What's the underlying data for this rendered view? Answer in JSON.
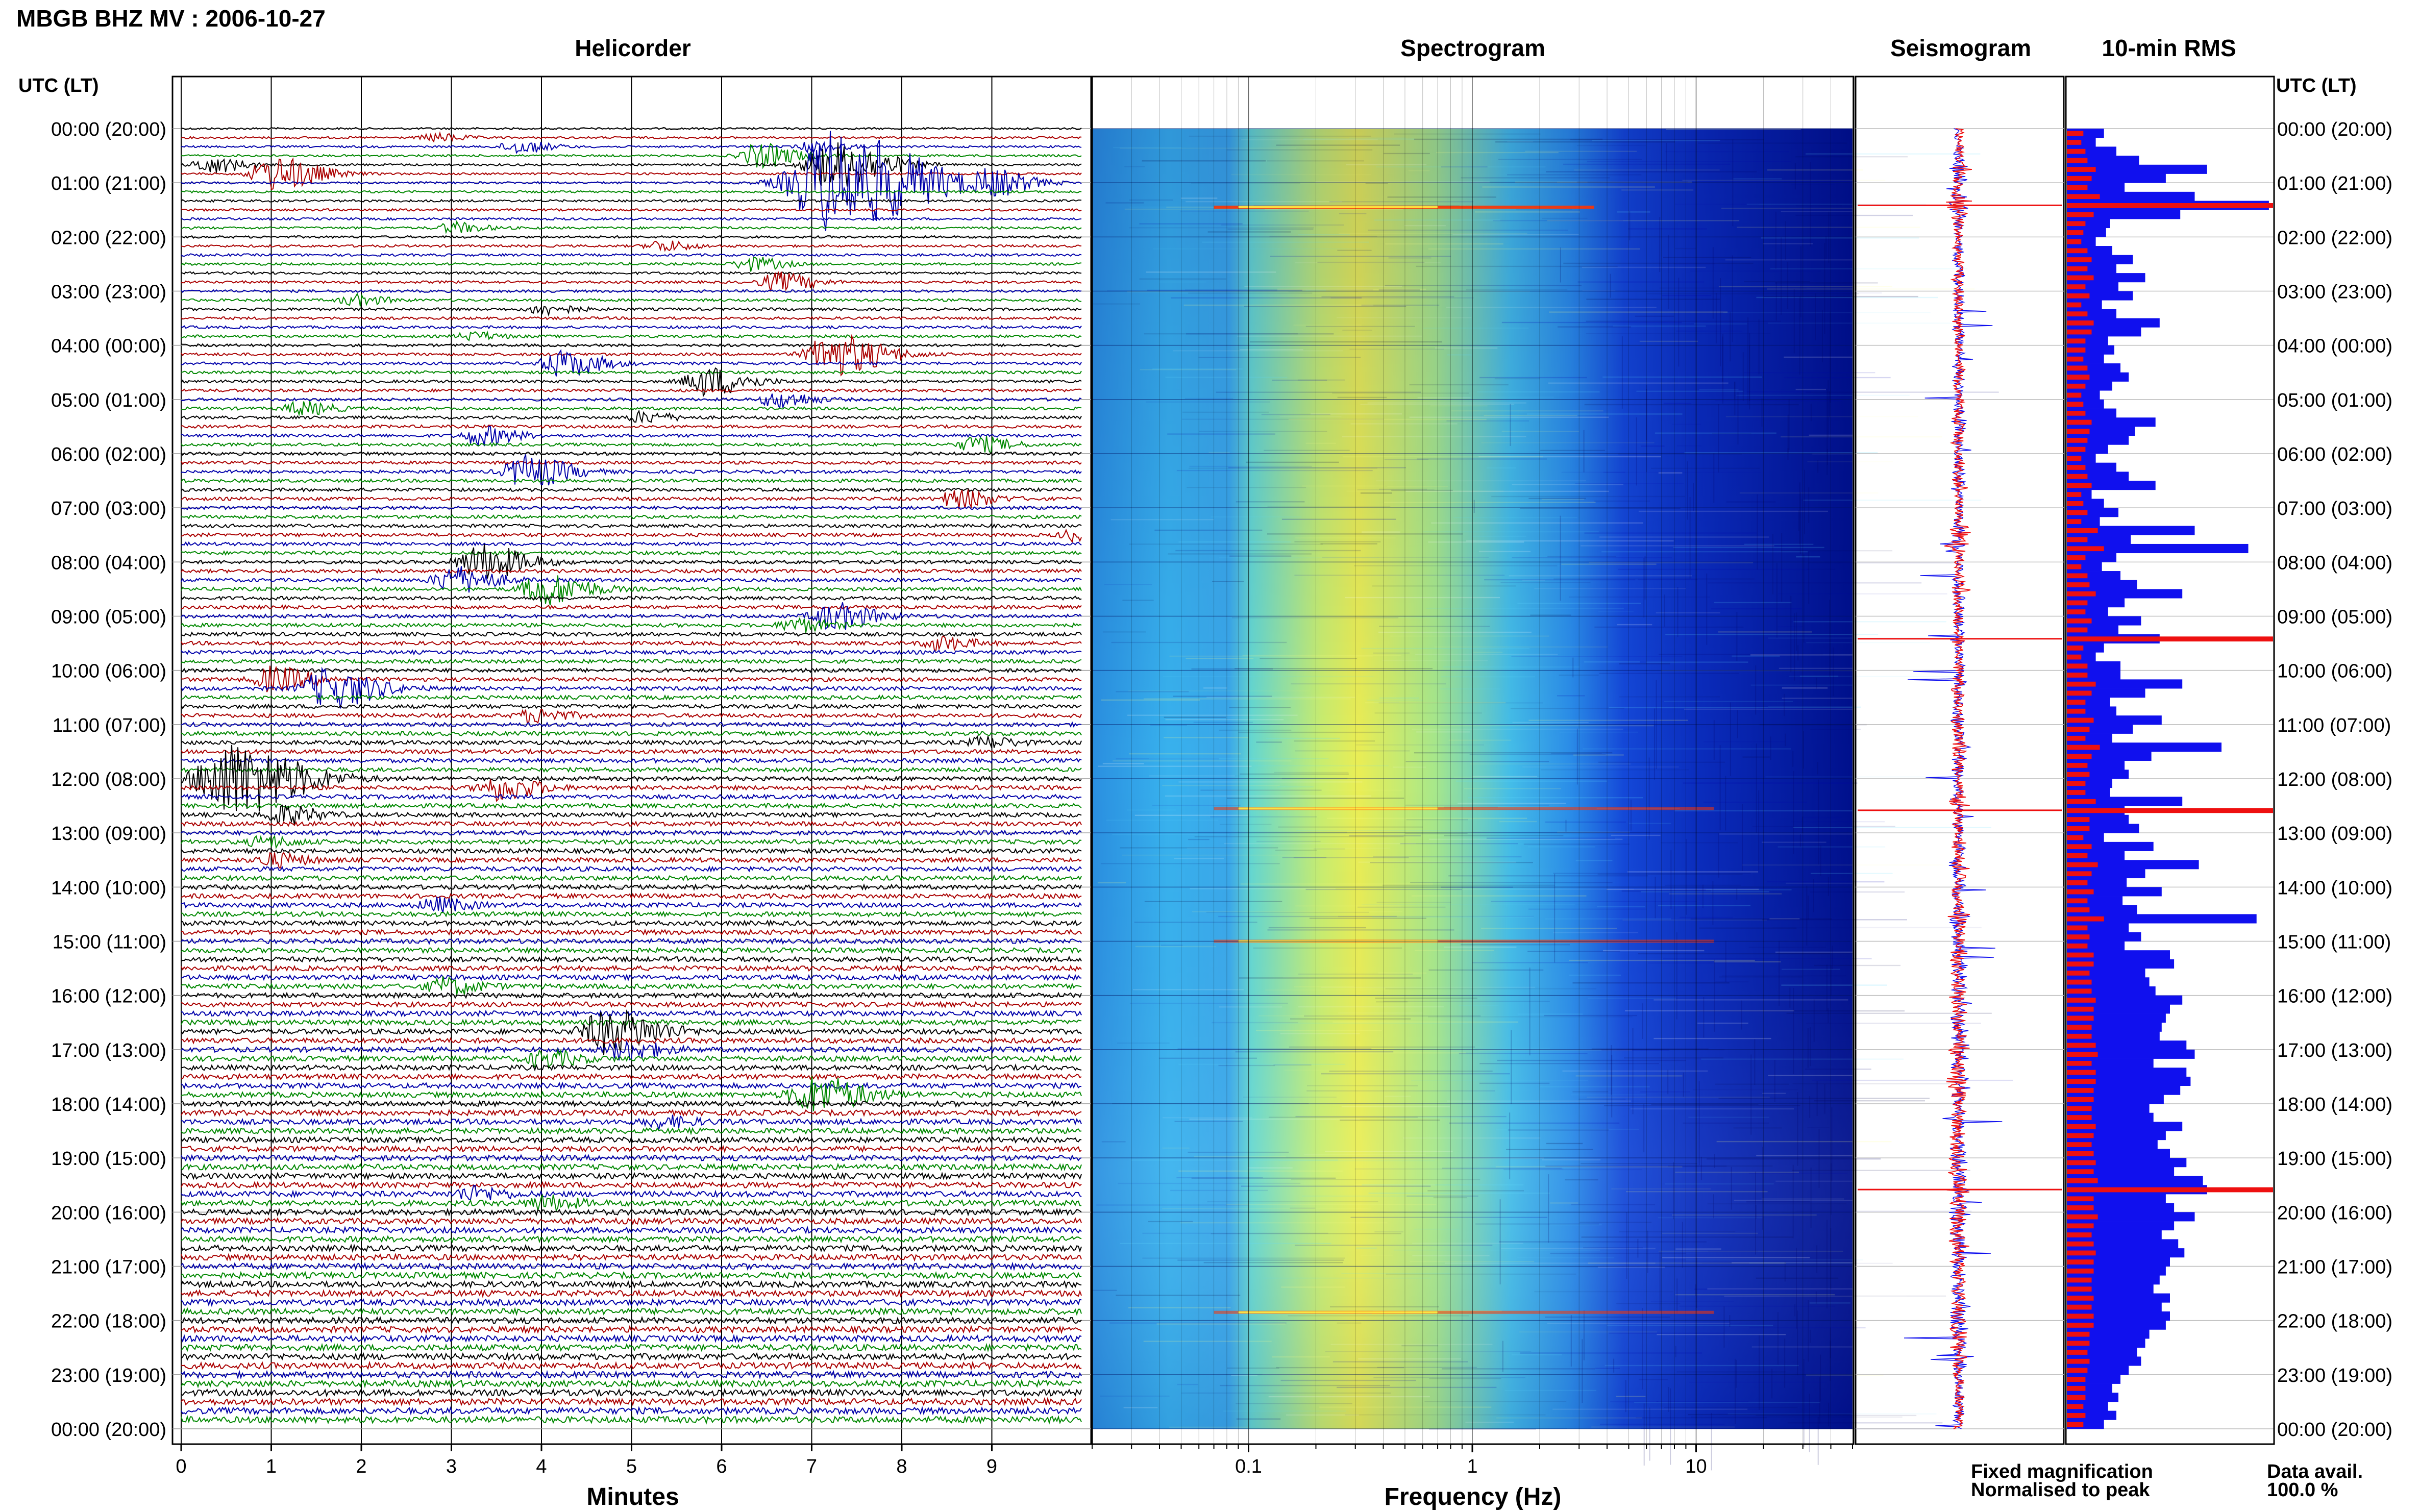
{
  "figure_title": "MBGB BHZ MV : 2006-10-27",
  "time_axis_label": "UTC (LT)",
  "time_labels": [
    "00:00 (20:00)",
    "01:00 (21:00)",
    "02:00 (22:00)",
    "03:00 (23:00)",
    "04:00 (00:00)",
    "05:00 (01:00)",
    "06:00 (02:00)",
    "07:00 (03:00)",
    "08:00 (04:00)",
    "09:00 (05:00)",
    "10:00 (06:00)",
    "11:00 (07:00)",
    "12:00 (08:00)",
    "13:00 (09:00)",
    "14:00 (10:00)",
    "15:00 (11:00)",
    "16:00 (12:00)",
    "17:00 (13:00)",
    "18:00 (14:00)",
    "19:00 (15:00)",
    "20:00 (16:00)",
    "21:00 (17:00)",
    "22:00 (18:00)",
    "23:00 (19:00)",
    "00:00 (20:00)"
  ],
  "legend": {
    "fixed": "Fixed magnification",
    "normalised": "Normalised to peak",
    "fixed_color": "#1010ee",
    "normalised_color": "#ee1010"
  },
  "data_avail_label": "Data avail.",
  "data_avail_value": "100.0 %",
  "colors": {
    "trace_cycle": [
      "#000000",
      "#aa0000",
      "#0000aa",
      "#008800"
    ],
    "spec_low": "#00008b",
    "spec_mid": "#33ccee",
    "spec_high": "#ffee44",
    "spike": "#ff3300"
  },
  "chart_data": [
    {
      "type": "line",
      "title": "Helicorder",
      "xlabel": "Minutes",
      "xlim": [
        0,
        10
      ],
      "x_ticks": [
        "0",
        "1",
        "2",
        "3",
        "4",
        "5",
        "6",
        "7",
        "8",
        "9"
      ],
      "hours": 24,
      "lines_per_hour": 6,
      "events": [
        {
          "line": 1,
          "minute": 2.8,
          "amp": 0.3
        },
        {
          "line": 2,
          "minute": 7.0,
          "amp": 0.4
        },
        {
          "line": 2,
          "minute": 3.7,
          "amp": 0.5
        },
        {
          "line": 3,
          "minute": 6.4,
          "amp": 0.9
        },
        {
          "line": 4,
          "minute": 0.3,
          "amp": 0.6
        },
        {
          "line": 4,
          "minute": 7.2,
          "amp": 1.8
        },
        {
          "line": 5,
          "minute": 1.0,
          "amp": 1.3
        },
        {
          "line": 6,
          "minute": 7.2,
          "amp": 4.0
        },
        {
          "line": 6,
          "minute": 9.0,
          "amp": 0.8
        },
        {
          "line": 11,
          "minute": 3.0,
          "amp": 0.4
        },
        {
          "line": 13,
          "minute": 5.3,
          "amp": 0.4
        },
        {
          "line": 15,
          "minute": 6.3,
          "amp": 0.5
        },
        {
          "line": 17,
          "minute": 6.6,
          "amp": 0.7
        },
        {
          "line": 19,
          "minute": 1.9,
          "amp": 0.4
        },
        {
          "line": 20,
          "minute": 4.0,
          "amp": 0.4
        },
        {
          "line": 23,
          "minute": 3.2,
          "amp": 0.3
        },
        {
          "line": 25,
          "minute": 7.2,
          "amp": 1.6
        },
        {
          "line": 26,
          "minute": 4.2,
          "amp": 1.0
        },
        {
          "line": 28,
          "minute": 5.8,
          "amp": 1.1
        },
        {
          "line": 30,
          "minute": 6.6,
          "amp": 0.6
        },
        {
          "line": 31,
          "minute": 1.3,
          "amp": 0.5
        },
        {
          "line": 32,
          "minute": 5.1,
          "amp": 0.4
        },
        {
          "line": 34,
          "minute": 3.3,
          "amp": 0.7
        },
        {
          "line": 35,
          "minute": 8.8,
          "amp": 0.6
        },
        {
          "line": 38,
          "minute": 3.8,
          "amp": 1.2
        },
        {
          "line": 41,
          "minute": 8.6,
          "amp": 0.7
        },
        {
          "line": 45,
          "minute": 9.9,
          "amp": 0.4
        },
        {
          "line": 48,
          "minute": 3.3,
          "amp": 1.3
        },
        {
          "line": 50,
          "minute": 3.0,
          "amp": 1.0
        },
        {
          "line": 51,
          "minute": 4.0,
          "amp": 1.2
        },
        {
          "line": 54,
          "minute": 7.2,
          "amp": 1.0
        },
        {
          "line": 55,
          "minute": 6.8,
          "amp": 0.5
        },
        {
          "line": 57,
          "minute": 8.4,
          "amp": 0.5
        },
        {
          "line": 61,
          "minute": 1.0,
          "amp": 0.9
        },
        {
          "line": 62,
          "minute": 1.6,
          "amp": 1.5
        },
        {
          "line": 65,
          "minute": 3.9,
          "amp": 0.5
        },
        {
          "line": 68,
          "minute": 8.9,
          "amp": 0.4
        },
        {
          "line": 72,
          "minute": 0.5,
          "amp": 2.8
        },
        {
          "line": 73,
          "minute": 3.5,
          "amp": 0.9
        },
        {
          "line": 76,
          "minute": 1.1,
          "amp": 0.7
        },
        {
          "line": 79,
          "minute": 0.9,
          "amp": 0.4
        },
        {
          "line": 81,
          "minute": 1.0,
          "amp": 0.5
        },
        {
          "line": 86,
          "minute": 2.8,
          "amp": 0.5
        },
        {
          "line": 95,
          "minute": 2.9,
          "amp": 0.6
        },
        {
          "line": 100,
          "minute": 4.7,
          "amp": 1.6
        },
        {
          "line": 102,
          "minute": 4.9,
          "amp": 0.7
        },
        {
          "line": 103,
          "minute": 4.0,
          "amp": 0.6
        },
        {
          "line": 107,
          "minute": 7.0,
          "amp": 1.4
        },
        {
          "line": 110,
          "minute": 5.3,
          "amp": 0.4
        },
        {
          "line": 118,
          "minute": 3.2,
          "amp": 0.5
        },
        {
          "line": 119,
          "minute": 4.0,
          "amp": 0.5
        }
      ]
    },
    {
      "type": "heatmap",
      "title": "Spectrogram",
      "xlabel": "Frequency (Hz)",
      "x_scale": "log",
      "xlim": [
        0.02,
        50
      ],
      "x_ticks": [
        0.1,
        1,
        10
      ],
      "x_tick_labels": [
        "0.1",
        "1",
        "10"
      ],
      "peak_frequency_hz": 0.28,
      "spike_hours": [
        1.45,
        15.0,
        21.85,
        12.55
      ]
    },
    {
      "type": "line",
      "title": "Seismogram",
      "series": [
        {
          "name": "Fixed magnification",
          "color": "#1010ee"
        },
        {
          "name": "Normalised to peak",
          "color": "#ee1010"
        }
      ]
    },
    {
      "type": "bar",
      "orientation": "horizontal",
      "title": "10-min RMS",
      "bins": 144,
      "fixed_rms_relative": [
        0.18,
        0.14,
        0.24,
        0.35,
        0.68,
        0.48,
        0.28,
        0.62,
        0.98,
        0.55,
        0.21,
        0.19,
        0.14,
        0.22,
        0.32,
        0.24,
        0.38,
        0.25,
        0.32,
        0.17,
        0.24,
        0.45,
        0.36,
        0.2,
        0.23,
        0.18,
        0.26,
        0.3,
        0.22,
        0.16,
        0.18,
        0.24,
        0.43,
        0.33,
        0.3,
        0.2,
        0.14,
        0.24,
        0.3,
        0.43,
        0.12,
        0.18,
        0.25,
        0.16,
        0.62,
        0.31,
        0.88,
        0.24,
        0.17,
        0.26,
        0.34,
        0.56,
        0.28,
        0.2,
        0.36,
        0.25,
        0.45,
        0.18,
        0.14,
        0.26,
        0.26,
        0.56,
        0.38,
        0.21,
        0.24,
        0.46,
        0.32,
        0.22,
        0.75,
        0.41,
        0.28,
        0.3,
        0.22,
        0.21,
        0.56,
        0.28,
        0.3,
        0.35,
        0.18,
        0.42,
        0.28,
        0.64,
        0.38,
        0.29,
        0.46,
        0.27,
        0.34,
        0.92,
        0.3,
        0.36,
        0.28,
        0.5,
        0.52,
        0.38,
        0.4,
        0.43,
        0.56,
        0.5,
        0.48,
        0.46,
        0.45,
        0.58,
        0.62,
        0.42,
        0.58,
        0.6,
        0.55,
        0.47,
        0.4,
        0.42,
        0.56,
        0.48,
        0.44,
        0.5,
        0.58,
        0.52,
        0.66,
        0.68,
        0.48,
        0.52,
        0.62,
        0.52,
        0.46,
        0.54,
        0.57,
        0.5,
        0.48,
        0.45,
        0.42,
        0.5,
        0.46,
        0.5,
        0.48,
        0.4,
        0.38,
        0.34,
        0.36,
        0.3,
        0.26,
        0.22,
        0.25,
        0.2,
        0.24,
        0.18
      ],
      "normalised_rms_relative": [
        0.08,
        0.07,
        0.09,
        0.1,
        0.14,
        0.12,
        0.1,
        0.16,
        0.18,
        0.13,
        0.09,
        0.08,
        0.07,
        0.1,
        0.12,
        0.1,
        0.13,
        0.09,
        0.11,
        0.07,
        0.1,
        0.13,
        0.12,
        0.09,
        0.09,
        0.08,
        0.1,
        0.11,
        0.09,
        0.07,
        0.08,
        0.09,
        0.12,
        0.11,
        0.1,
        0.09,
        0.07,
        0.09,
        0.1,
        0.12,
        0.07,
        0.08,
        0.1,
        0.07,
        0.15,
        0.1,
        0.18,
        0.09,
        0.07,
        0.1,
        0.11,
        0.14,
        0.1,
        0.09,
        0.12,
        0.1,
        0.13,
        0.08,
        0.07,
        0.1,
        0.1,
        0.14,
        0.12,
        0.09,
        0.09,
        0.13,
        0.11,
        0.09,
        0.16,
        0.12,
        0.1,
        0.11,
        0.09,
        0.09,
        0.14,
        0.1,
        0.11,
        0.11,
        0.08,
        0.12,
        0.1,
        0.15,
        0.12,
        0.1,
        0.13,
        0.1,
        0.11,
        0.18,
        0.1,
        0.11,
        0.1,
        0.13,
        0.13,
        0.11,
        0.12,
        0.12,
        0.14,
        0.13,
        0.13,
        0.12,
        0.12,
        0.14,
        0.15,
        0.12,
        0.14,
        0.14,
        0.13,
        0.13,
        0.12,
        0.12,
        0.14,
        0.13,
        0.12,
        0.13,
        0.14,
        0.13,
        0.15,
        0.15,
        0.13,
        0.13,
        0.15,
        0.13,
        0.12,
        0.13,
        0.14,
        0.13,
        0.13,
        0.12,
        0.12,
        0.13,
        0.12,
        0.13,
        0.13,
        0.11,
        0.11,
        0.1,
        0.11,
        0.1,
        0.09,
        0.09,
        0.09,
        0.08,
        0.09,
        0.08
      ],
      "normalised_peak_bins": [
        8,
        56,
        75,
        117
      ]
    }
  ]
}
